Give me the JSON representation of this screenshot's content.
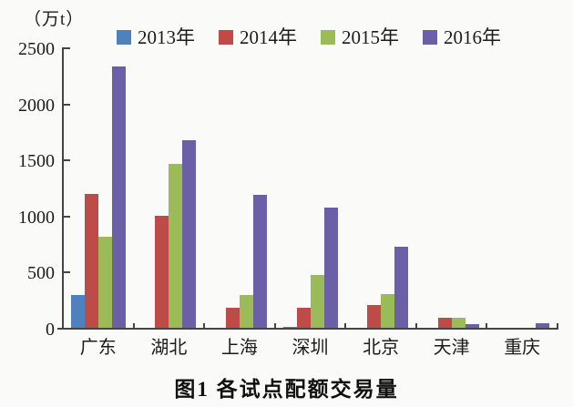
{
  "page": {
    "background": "#fafaf8",
    "axis_color": "#454545"
  },
  "chart_data": {
    "type": "bar",
    "title": "图1  各试点配额交易量",
    "unit_label": "（万t）",
    "xlabel": "",
    "ylabel": "万t",
    "ylim": [
      0,
      2500
    ],
    "yticks": [
      0,
      500,
      1000,
      1500,
      2000,
      2500
    ],
    "grid": false,
    "legend_position": "top",
    "categories": [
      "广东",
      "湖北",
      "上海",
      "深圳",
      "北京",
      "天津",
      "重庆"
    ],
    "series": [
      {
        "name": "2013年",
        "color": "#4f81bd",
        "values": [
          300,
          0,
          0,
          20,
          0,
          0,
          0
        ]
      },
      {
        "name": "2014年",
        "color": "#bf4b48",
        "values": [
          1200,
          1010,
          190,
          185,
          215,
          95,
          0
        ]
      },
      {
        "name": "2015年",
        "color": "#9bbb59",
        "values": [
          820,
          1470,
          300,
          480,
          310,
          95,
          0
        ]
      },
      {
        "name": "2016年",
        "color": "#6b5fa7",
        "values": [
          2340,
          1680,
          1190,
          1080,
          730,
          40,
          45
        ]
      }
    ]
  },
  "caption": {
    "text": "图1  各试点配额交易量"
  }
}
